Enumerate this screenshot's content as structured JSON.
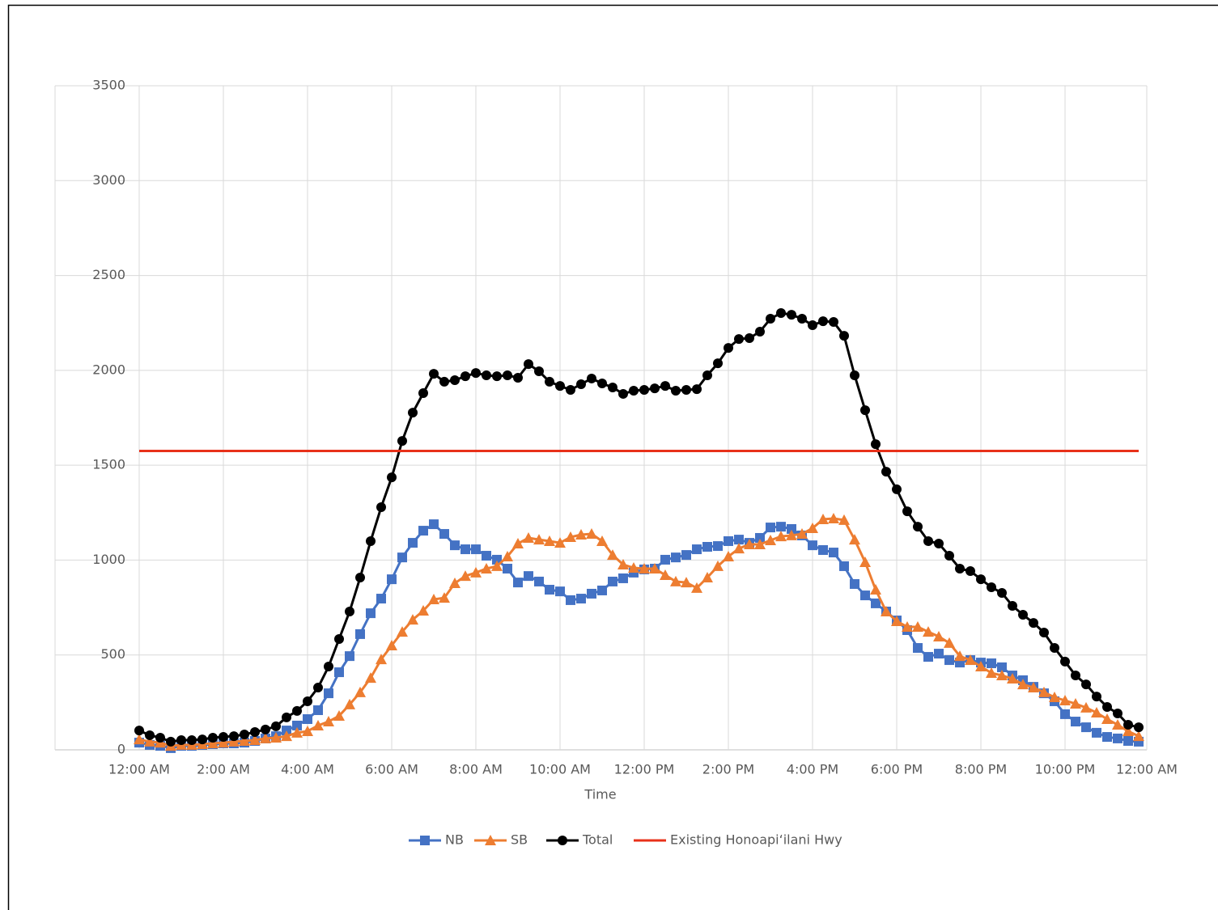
{
  "chart_data": {
    "type": "line",
    "x_label": "Time",
    "x": [
      0,
      0.25,
      0.5,
      0.75,
      1,
      1.25,
      1.5,
      1.75,
      2,
      2.25,
      2.5,
      2.75,
      3,
      3.25,
      3.5,
      3.75,
      4,
      4.25,
      4.5,
      4.75,
      5,
      5.25,
      5.5,
      5.75,
      6,
      6.25,
      6.5,
      6.75,
      7,
      7.25,
      7.5,
      7.75,
      8,
      8.25,
      8.5,
      8.75,
      9,
      9.25,
      9.5,
      9.75,
      10,
      10.25,
      10.5,
      10.75,
      11,
      11.25,
      11.5,
      11.75,
      12,
      12.25,
      12.5,
      12.75,
      13,
      13.25,
      13.5,
      13.75,
      14,
      14.25,
      14.5,
      14.75,
      15,
      15.25,
      15.5,
      15.75,
      16,
      16.25,
      16.5,
      16.75,
      17,
      17.25,
      17.5,
      17.75,
      18,
      18.25,
      18.5,
      18.75,
      19,
      19.25,
      19.5,
      19.75,
      20,
      20.25,
      20.5,
      20.75,
      21,
      21.25,
      21.5,
      21.75,
      22,
      22.25,
      22.5,
      22.75,
      23,
      23.25,
      23.5,
      23.75
    ],
    "xlim": [
      0,
      24
    ],
    "xticks": [
      {
        "value": 0,
        "label": "12:00 AM"
      },
      {
        "value": 2,
        "label": "2:00 AM"
      },
      {
        "value": 4,
        "label": "4:00 AM"
      },
      {
        "value": 6,
        "label": "6:00 AM"
      },
      {
        "value": 8,
        "label": "8:00 AM"
      },
      {
        "value": 10,
        "label": "10:00 AM"
      },
      {
        "value": 12,
        "label": "12:00 PM"
      },
      {
        "value": 14,
        "label": "2:00 PM"
      },
      {
        "value": 16,
        "label": "4:00 PM"
      },
      {
        "value": 18,
        "label": "6:00 PM"
      },
      {
        "value": 20,
        "label": "8:00 PM"
      },
      {
        "value": 22,
        "label": "10:00 PM"
      },
      {
        "value": 24,
        "label": "12:00 AM"
      }
    ],
    "ylim": [
      0,
      3500
    ],
    "yticks": [
      0,
      500,
      1000,
      1500,
      2000,
      2500,
      3000,
      3500
    ],
    "grid": true,
    "legend": "bottom",
    "series": [
      {
        "name": "NB",
        "color": "#4472c4",
        "marker": "square",
        "values": [
          38,
          26,
          21,
          9,
          21,
          21,
          26,
          30,
          34,
          34,
          38,
          47,
          60,
          72,
          102,
          128,
          162,
          209,
          298,
          409,
          494,
          610,
          720,
          797,
          899,
          1014,
          1091,
          1155,
          1189,
          1138,
          1078,
          1057,
          1057,
          1023,
          1002,
          955,
          882,
          916,
          887,
          844,
          835,
          789,
          797,
          823,
          840,
          887,
          904,
          934,
          951,
          955,
          1002,
          1014,
          1027,
          1057,
          1070,
          1074,
          1100,
          1108,
          1091,
          1117,
          1172,
          1176,
          1164,
          1130,
          1078,
          1053,
          1040,
          968,
          874,
          814,
          772,
          729,
          682,
          631,
          537,
          490,
          507,
          473,
          460,
          473,
          460,
          456,
          435,
          392,
          367,
          332,
          298,
          256,
          188,
          149,
          119,
          90,
          68,
          60,
          47,
          43
        ]
      },
      {
        "name": "SB",
        "color": "#ed7d31",
        "marker": "triangle",
        "values": [
          55,
          43,
          38,
          21,
          26,
          26,
          30,
          34,
          38,
          43,
          47,
          51,
          60,
          64,
          72,
          90,
          98,
          128,
          149,
          179,
          239,
          303,
          379,
          477,
          550,
          622,
          686,
          733,
          793,
          801,
          878,
          916,
          934,
          955,
          968,
          1019,
          1087,
          1117,
          1108,
          1100,
          1091,
          1121,
          1134,
          1138,
          1100,
          1027,
          976,
          959,
          955,
          955,
          921,
          887,
          882,
          853,
          908,
          968,
          1019,
          1061,
          1083,
          1083,
          1104,
          1125,
          1130,
          1138,
          1168,
          1215,
          1219,
          1211,
          1108,
          989,
          844,
          729,
          678,
          648,
          648,
          622,
          597,
          563,
          494,
          473,
          439,
          405,
          392,
          375,
          345,
          328,
          303,
          277,
          260,
          243,
          222,
          196,
          162,
          132,
          98,
          72
        ]
      },
      {
        "name": "Total",
        "color": "#000000",
        "marker": "circle",
        "values": [
          102,
          77,
          64,
          43,
          51,
          51,
          55,
          64,
          68,
          72,
          81,
          94,
          107,
          124,
          171,
          205,
          256,
          328,
          439,
          584,
          729,
          908,
          1100,
          1279,
          1436,
          1628,
          1777,
          1880,
          1982,
          1940,
          1948,
          1969,
          1986,
          1974,
          1969,
          1974,
          1961,
          2033,
          1995,
          1940,
          1918,
          1897,
          1927,
          1957,
          1931,
          1910,
          1876,
          1893,
          1897,
          1905,
          1918,
          1893,
          1897,
          1901,
          1974,
          2037,
          2118,
          2165,
          2170,
          2204,
          2272,
          2302,
          2293,
          2272,
          2238,
          2259,
          2255,
          2182,
          1974,
          1790,
          1611,
          1466,
          1373,
          1257,
          1176,
          1100,
          1087,
          1023,
          955,
          942,
          899,
          857,
          827,
          759,
          712,
          669,
          618,
          537,
          465,
          392,
          345,
          281,
          226,
          192,
          132,
          119
        ]
      },
      {
        "name": "Existing Honoapi‘ilani Hwy",
        "color": "#e8311a",
        "marker": "none",
        "values": [
          1575,
          1575,
          1575,
          1575,
          1575,
          1575,
          1575,
          1575,
          1575,
          1575,
          1575,
          1575,
          1575,
          1575,
          1575,
          1575,
          1575,
          1575,
          1575,
          1575,
          1575,
          1575,
          1575,
          1575,
          1575,
          1575,
          1575,
          1575,
          1575,
          1575,
          1575,
          1575,
          1575,
          1575,
          1575,
          1575,
          1575,
          1575,
          1575,
          1575,
          1575,
          1575,
          1575,
          1575,
          1575,
          1575,
          1575,
          1575,
          1575,
          1575,
          1575,
          1575,
          1575,
          1575,
          1575,
          1575,
          1575,
          1575,
          1575,
          1575,
          1575,
          1575,
          1575,
          1575,
          1575,
          1575,
          1575,
          1575,
          1575,
          1575,
          1575,
          1575,
          1575,
          1575,
          1575,
          1575,
          1575,
          1575,
          1575,
          1575,
          1575,
          1575,
          1575,
          1575,
          1575,
          1575,
          1575,
          1575,
          1575,
          1575,
          1575,
          1575,
          1575,
          1575,
          1575,
          1575
        ]
      }
    ]
  }
}
